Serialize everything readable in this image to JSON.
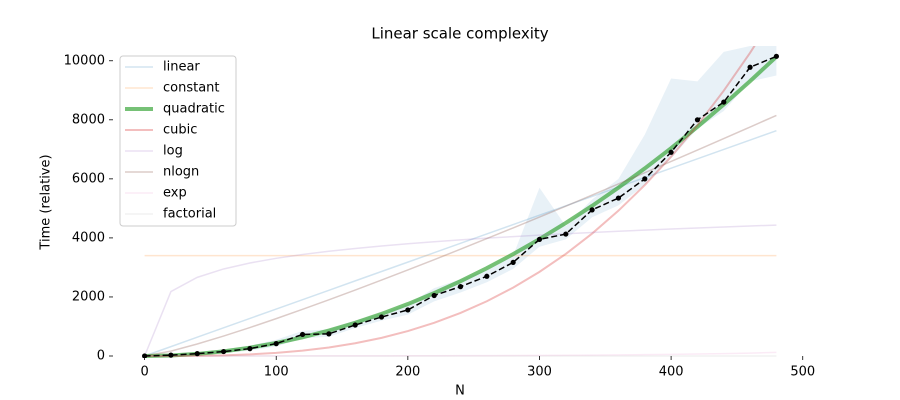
{
  "chart_data": {
    "type": "line",
    "title": "Linear scale complexity",
    "x_label": "N",
    "y_label": "Time (relative)",
    "x": [
      0,
      20,
      40,
      60,
      80,
      100,
      120,
      140,
      160,
      180,
      200,
      220,
      240,
      260,
      280,
      300,
      320,
      340,
      360,
      380,
      400,
      420,
      440,
      460,
      480
    ],
    "xlim": [
      -24,
      504
    ],
    "ylim": [
      0,
      10500
    ],
    "xticks": [
      0,
      100,
      200,
      300,
      400,
      500
    ],
    "yticks": [
      0,
      2000,
      4000,
      6000,
      8000,
      10000
    ],
    "legend": "upper left",
    "series": [
      {
        "name": "linear",
        "color": "rgba(31,119,180,0.2)",
        "width": 1.5,
        "values": [
          0,
          318,
          636,
          954,
          1272,
          1590,
          1908,
          2226,
          2544,
          2862,
          3180,
          3498,
          3816,
          4134,
          4452,
          4770,
          5088,
          5406,
          5724,
          6042,
          6360,
          6678,
          6996,
          7314,
          7632
        ]
      },
      {
        "name": "constant",
        "color": "rgba(255,127,14,0.2)",
        "width": 1.5,
        "values": [
          3400,
          3400,
          3400,
          3400,
          3400,
          3400,
          3400,
          3400,
          3400,
          3400,
          3400,
          3400,
          3400,
          3400,
          3400,
          3400,
          3400,
          3400,
          3400,
          3400,
          3400,
          3400,
          3400,
          3400,
          3400
        ]
      },
      {
        "name": "quadratic",
        "color": "rgba(44,160,44,0.65)",
        "width": 4,
        "values": [
          0,
          18,
          70,
          158,
          282,
          440,
          634,
          862,
          1126,
          1426,
          1760,
          2130,
          2534,
          2974,
          3450,
          3960,
          4506,
          5086,
          5702,
          6354,
          7040,
          7762,
          8518,
          9310,
          10138
        ]
      },
      {
        "name": "cubic",
        "color": "rgba(214,39,40,0.3)",
        "width": 2,
        "values": [
          0,
          1,
          7,
          23,
          54,
          106,
          182,
          289,
          432,
          615,
          844,
          1123,
          1458,
          1854,
          2316,
          2849,
          3457,
          4147,
          4922,
          5789,
          6752,
          7816,
          8987,
          10269,
          11668
        ]
      },
      {
        "name": "log",
        "color": "rgba(148,103,189,0.2)",
        "width": 1.5,
        "values": [
          0,
          2183,
          2663,
          2948,
          3151,
          3309,
          3439,
          3548,
          3643,
          3727,
          3802,
          3871,
          3934,
          3991,
          4045,
          4094,
          4141,
          4185,
          4226,
          4265,
          4302,
          4337,
          4371,
          4403,
          4434
        ]
      },
      {
        "name": "nlogn",
        "color": "rgba(140,86,75,0.3)",
        "width": 1.5,
        "values": [
          0,
          165,
          406,
          676,
          964,
          1266,
          1580,
          1903,
          2233,
          2571,
          2915,
          3263,
          3617,
          3976,
          4339,
          4706,
          5076,
          5450,
          5827,
          6207,
          6590,
          6976,
          7365,
          7756,
          8150
        ]
      },
      {
        "name": "exp",
        "color": "rgba(227,119,194,0.15)",
        "width": 1.5,
        "values": [
          1,
          1,
          1,
          2,
          2,
          3,
          3,
          4,
          5,
          6,
          7,
          9,
          11,
          13,
          16,
          20,
          25,
          30,
          37,
          45,
          55,
          67,
          81,
          99,
          122
        ]
      },
      {
        "name": "factorial",
        "color": "rgba(127,127,127,0.1)",
        "width": 1.5,
        "values": [
          0,
          0,
          0,
          0,
          0,
          0,
          0,
          0,
          0,
          0,
          0,
          0,
          0,
          0,
          0,
          0,
          0,
          0,
          0,
          0,
          0,
          0,
          0,
          0,
          0
        ]
      }
    ],
    "band": {
      "color": "rgba(31,119,180,0.1)",
      "lower": [
        0,
        0,
        40,
        100,
        180,
        320,
        600,
        650,
        950,
        1200,
        1400,
        1850,
        2150,
        2500,
        2950,
        3700,
        3950,
        4700,
        5100,
        5800,
        6700,
        7700,
        8300,
        9300,
        9500
      ],
      "upper": [
        0,
        60,
        120,
        220,
        350,
        550,
        850,
        900,
        1200,
        1450,
        1750,
        2300,
        2600,
        2900,
        3400,
        5700,
        4400,
        5300,
        6000,
        7500,
        9400,
        9300,
        10300,
        10500,
        10500
      ]
    },
    "measured": {
      "color": "#000000",
      "values": [
        0,
        30,
        80,
        150,
        250,
        420,
        730,
        750,
        1050,
        1320,
        1560,
        2050,
        2350,
        2700,
        3170,
        3950,
        4130,
        4950,
        5350,
        6000,
        6900,
        8000,
        8600,
        9780,
        10150
      ]
    }
  }
}
